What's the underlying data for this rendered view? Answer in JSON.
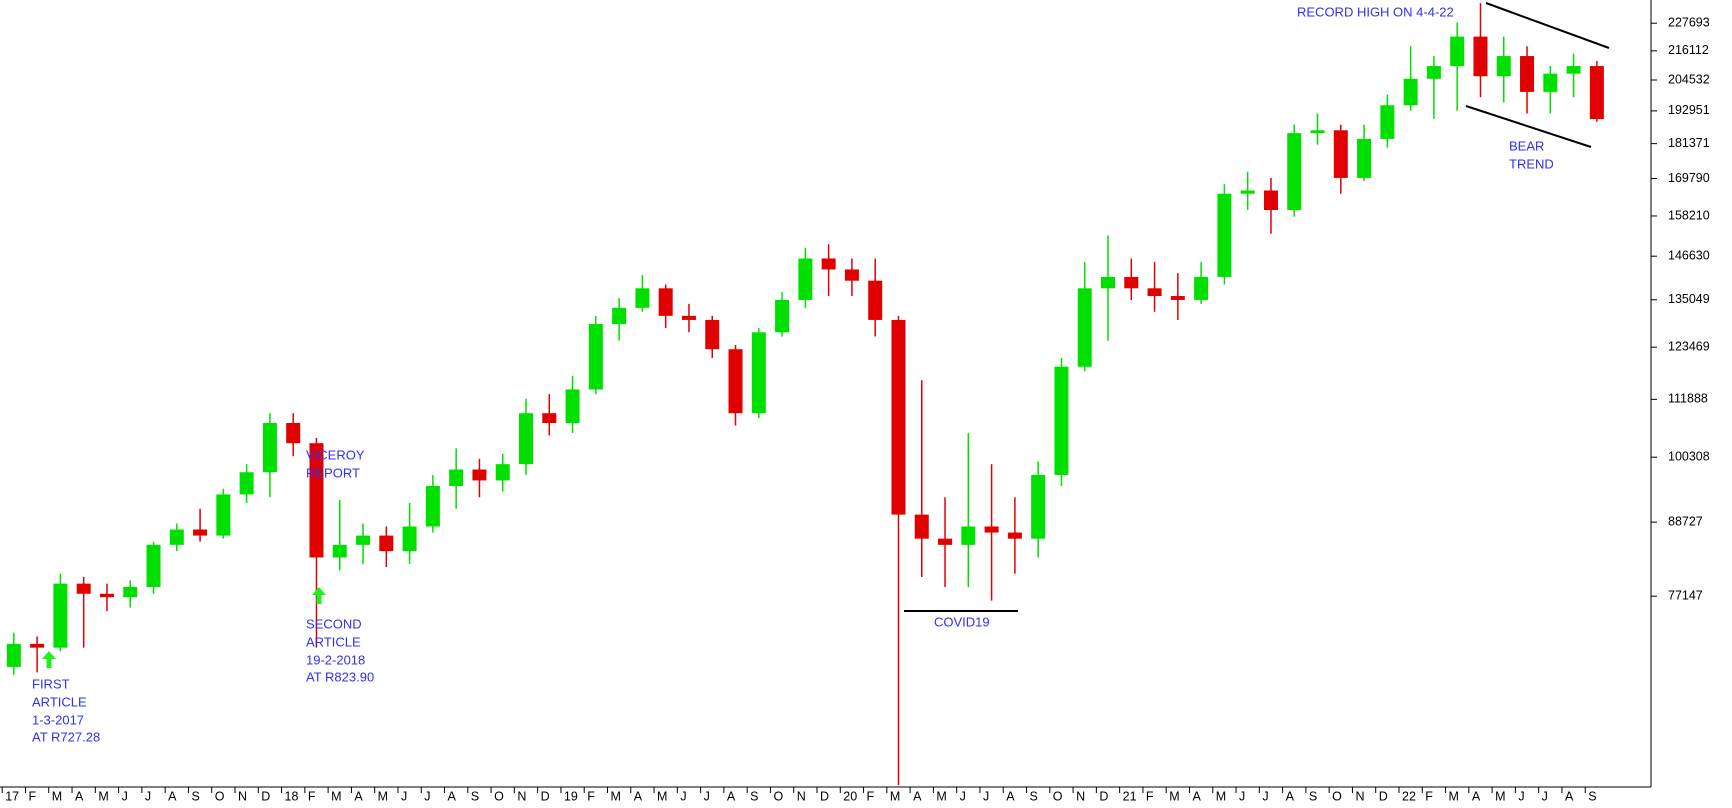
{
  "chart_data": {
    "type": "candlestick",
    "categories": [
      "17",
      "F",
      "M",
      "A",
      "M",
      "J",
      "J",
      "A",
      "S",
      "O",
      "N",
      "D",
      "18",
      "F",
      "M",
      "A",
      "M",
      "J",
      "J",
      "A",
      "S",
      "O",
      "N",
      "D",
      "19",
      "F",
      "M",
      "A",
      "M",
      "J",
      "J",
      "A",
      "S",
      "O",
      "N",
      "D",
      "20",
      "F",
      "M",
      "A",
      "M",
      "J",
      "J",
      "A",
      "S",
      "O",
      "N",
      "D",
      "21",
      "F",
      "M",
      "A",
      "M",
      "J",
      "J",
      "A",
      "S",
      "O",
      "N",
      "D",
      "22",
      "F",
      "M",
      "A",
      "M",
      "J",
      "J",
      "A",
      "S"
    ],
    "open": [
      67500,
      70500,
      70000,
      79000,
      77500,
      77000,
      78500,
      85000,
      87500,
      86500,
      93500,
      97500,
      107000,
      103000,
      83000,
      85000,
      86500,
      84000,
      88000,
      95000,
      98000,
      96000,
      99000,
      109000,
      107000,
      114000,
      129000,
      133000,
      138000,
      131000,
      130000,
      123000,
      109000,
      127000,
      135000,
      146000,
      143000,
      140000,
      130000,
      90000,
      86000,
      85000,
      88000,
      87000,
      86000,
      97000,
      119000,
      138000,
      141000,
      138000,
      136000,
      135000,
      141000,
      165000,
      166000,
      160000,
      185000,
      186000,
      170000,
      183000,
      195000,
      205000,
      210000,
      222000,
      206000,
      214000,
      200000,
      207000,
      210000
    ],
    "high": [
      72000,
      71500,
      80500,
      80000,
      79000,
      79500,
      85500,
      88500,
      91000,
      94500,
      99000,
      109000,
      109000,
      104000,
      92500,
      88500,
      88000,
      92000,
      97000,
      102000,
      100000,
      101000,
      112000,
      113000,
      117000,
      131000,
      135500,
      141500,
      139000,
      134000,
      131000,
      124000,
      128000,
      137000,
      149000,
      150000,
      146000,
      146000,
      131000,
      116000,
      93000,
      105000,
      99000,
      93000,
      99500,
      121000,
      145000,
      152500,
      146000,
      145000,
      142000,
      145000,
      168000,
      172000,
      170000,
      188000,
      192000,
      188000,
      188000,
      199000,
      218000,
      214000,
      228000,
      236500,
      222000,
      218000,
      210000,
      215000,
      212000
    ],
    "low": [
      66500,
      66800,
      69500,
      70000,
      75000,
      75500,
      77500,
      84000,
      85500,
      86000,
      92000,
      93000,
      100500,
      70000,
      81000,
      82000,
      81500,
      82000,
      87000,
      91000,
      93000,
      94000,
      97000,
      104500,
      105000,
      113000,
      125000,
      132000,
      128000,
      127000,
      121000,
      106500,
      108000,
      126000,
      133000,
      136000,
      136000,
      126000,
      54000,
      80000,
      78500,
      78500,
      76500,
      80500,
      83000,
      95000,
      118000,
      125000,
      135000,
      132000,
      130000,
      134000,
      139000,
      160000,
      153000,
      158000,
      181000,
      165000,
      169000,
      180000,
      193000,
      190000,
      193000,
      198000,
      196000,
      192000,
      192000,
      198000,
      189000
    ],
    "close": [
      70500,
      70000,
      79000,
      77500,
      77000,
      78500,
      85000,
      87500,
      86500,
      93500,
      97500,
      107000,
      103000,
      83000,
      85000,
      86500,
      84000,
      88000,
      95000,
      98000,
      96000,
      99000,
      109000,
      107000,
      114000,
      129000,
      133000,
      138000,
      131000,
      130000,
      123000,
      109000,
      127000,
      135000,
      146000,
      143000,
      140000,
      130000,
      90000,
      86000,
      85000,
      88000,
      87000,
      86000,
      97000,
      119000,
      138000,
      141000,
      138000,
      136000,
      135000,
      141000,
      165000,
      166000,
      160000,
      185000,
      186000,
      170000,
      183000,
      195000,
      205000,
      210000,
      222000,
      206000,
      214000,
      200000,
      207000,
      210000,
      190000
    ],
    "up_color": "#00e000",
    "down_color": "#e00000",
    "log_y": true,
    "ylim": [
      53800,
      237900
    ],
    "yticks": [
      77147,
      88727,
      100308,
      111888,
      123469,
      135049,
      146630,
      158210,
      169790,
      181371,
      192951,
      204532,
      216112,
      227693
    ],
    "annotations": [
      {
        "lines": [
          "RECORD HIGH ON 4-4-22"
        ]
      },
      {
        "lines": [
          "BEAR",
          "TREND"
        ]
      },
      {
        "lines": [
          "VICEROY",
          "REPORT"
        ]
      },
      {
        "lines": [
          "SECOND",
          "ARTICLE",
          "19-2-2018",
          "AT R823.90"
        ]
      },
      {
        "lines": [
          "FIRST",
          "ARTICLE",
          "1-3-2017",
          "AT R727.28"
        ]
      },
      {
        "lines": [
          "COVID19"
        ]
      }
    ]
  }
}
